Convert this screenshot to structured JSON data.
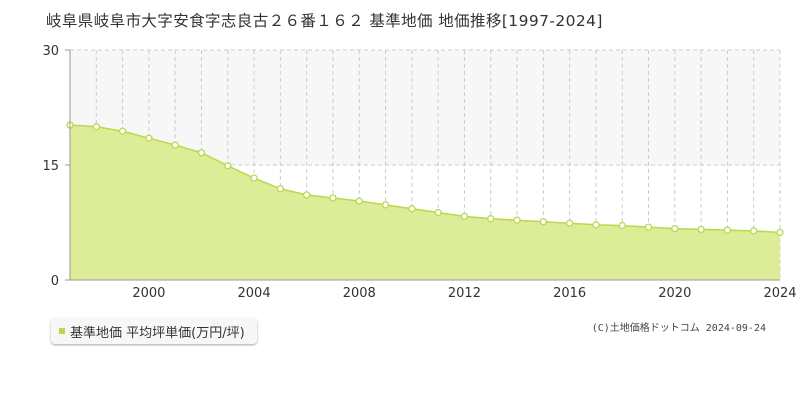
{
  "header": {
    "title": "岐阜県岐阜市大字安食字志良古２６番１６２ 基準地価 地価推移[1997-2024]"
  },
  "legend": {
    "label": "基準地価 平均坪単価(万円/坪)"
  },
  "footer": {
    "credit": "(C)土地価格ドットコム 2024-09-24"
  },
  "colors": {
    "fill": "#dcec97",
    "line": "#b8d94f",
    "marker_fill": "#ffffff",
    "grid": "#cccccc",
    "band": "#f7f7f7"
  },
  "chart_data": {
    "type": "area",
    "x": [
      1997,
      1998,
      1999,
      2000,
      2001,
      2002,
      2003,
      2004,
      2005,
      2006,
      2007,
      2008,
      2009,
      2010,
      2011,
      2012,
      2013,
      2014,
      2015,
      2016,
      2017,
      2018,
      2019,
      2020,
      2021,
      2022,
      2023,
      2024
    ],
    "series": [
      {
        "name": "基準地価 平均坪単価(万円/坪)",
        "values": [
          20.2,
          20.0,
          19.4,
          18.5,
          17.6,
          16.6,
          14.9,
          13.3,
          11.9,
          11.1,
          10.7,
          10.3,
          9.8,
          9.3,
          8.8,
          8.3,
          8.0,
          7.8,
          7.6,
          7.4,
          7.2,
          7.1,
          6.9,
          6.7,
          6.6,
          6.5,
          6.4,
          6.2
        ]
      }
    ],
    "x_ticks": [
      "2000",
      "2004",
      "2008",
      "2012",
      "2016",
      "2020",
      "2024"
    ],
    "y_ticks": [
      "0",
      "15",
      "30"
    ],
    "xlim": [
      1997,
      2024
    ],
    "ylim": [
      0,
      30
    ],
    "grid": true
  }
}
